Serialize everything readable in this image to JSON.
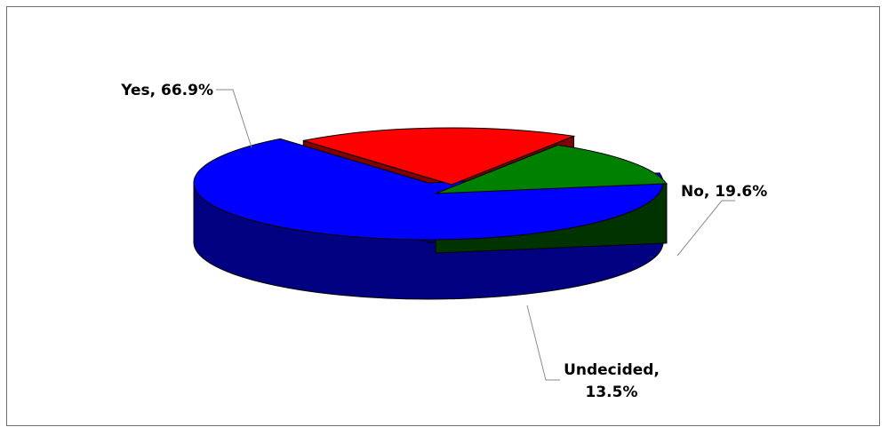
{
  "chart_data": {
    "type": "pie",
    "style": "3d-exploded",
    "title": "",
    "slices": [
      {
        "name": "Yes",
        "value": 66.9,
        "label_line1": "Yes, 66.9%",
        "label_line2": "",
        "top_color": "#0000FF",
        "side_color": "#000080"
      },
      {
        "name": "No",
        "value": 19.6,
        "label_line1": "No, 19.6%",
        "label_line2": "",
        "top_color": "#FF0000",
        "side_color": "#800000"
      },
      {
        "name": "Undecided",
        "value": 13.5,
        "label_line1": "Undecided,",
        "label_line2": "13.5%",
        "top_color": "#008000",
        "side_color": "#003300"
      }
    ],
    "legend": "none",
    "grid": false
  }
}
